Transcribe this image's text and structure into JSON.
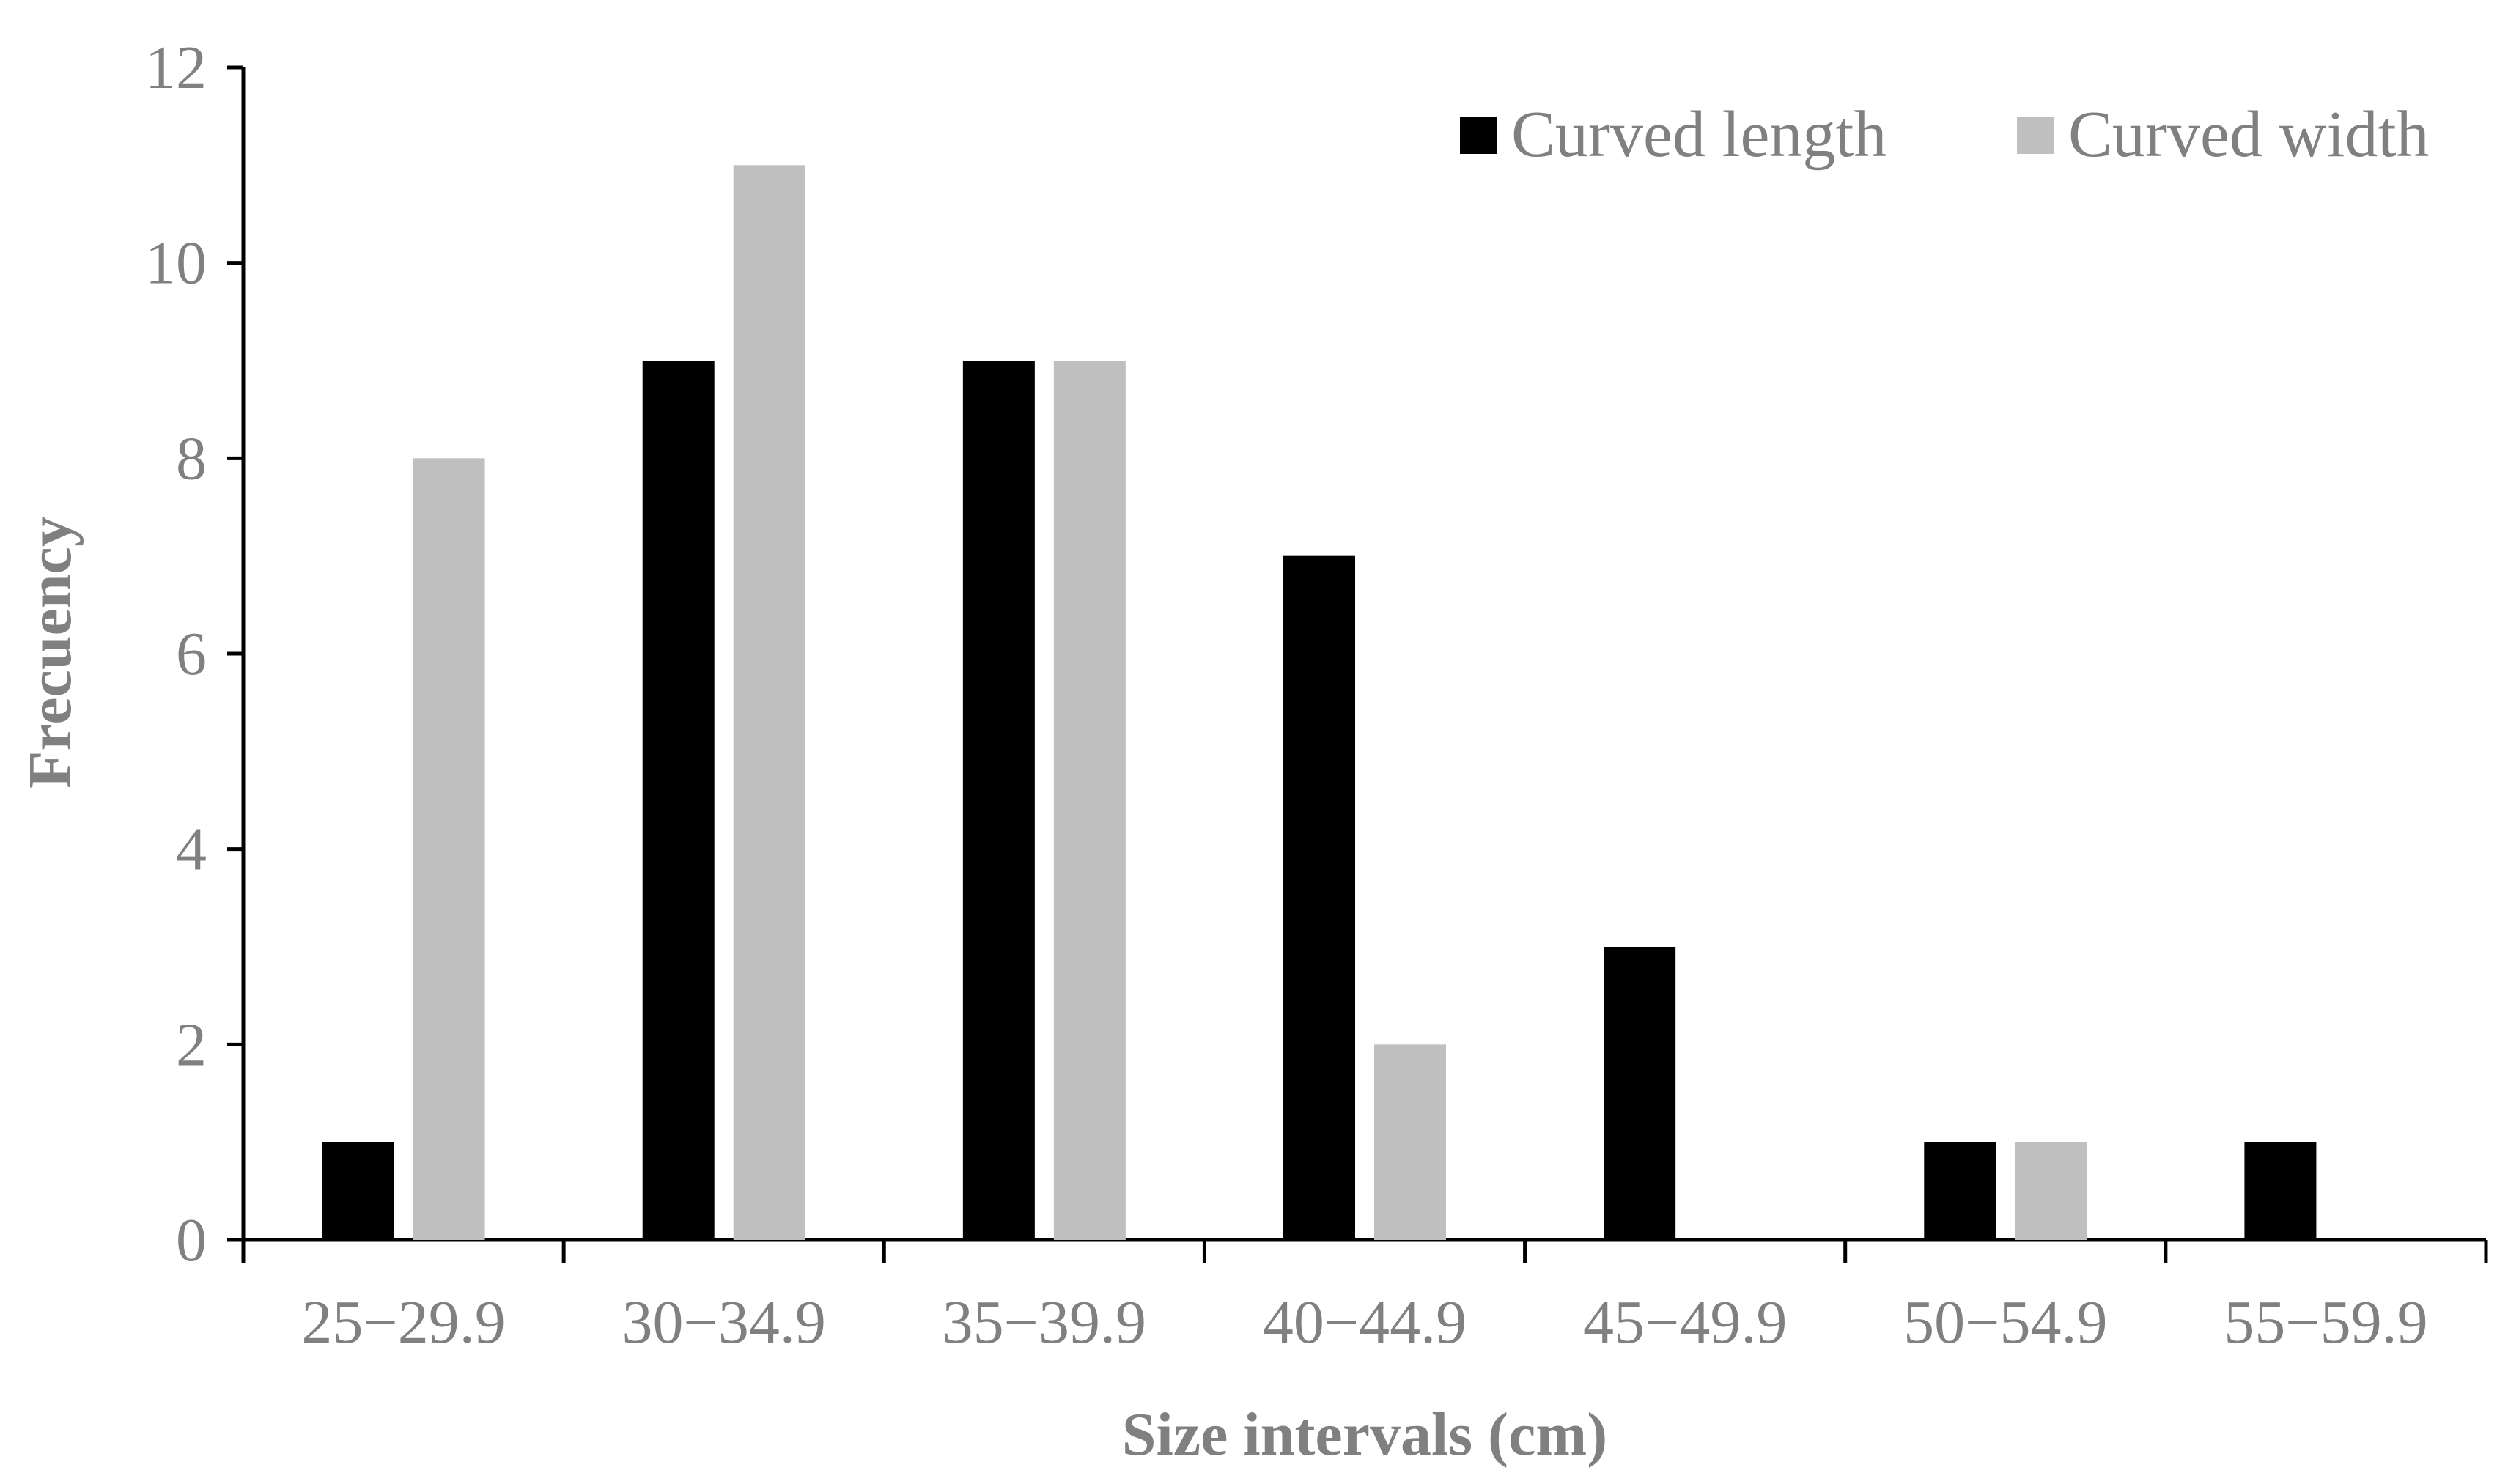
{
  "chart_data": {
    "type": "bar",
    "title": "",
    "xlabel": "Size intervals (cm)",
    "ylabel": "Frecuency",
    "categories": [
      "25−29.9",
      "30−34.9",
      "35−39.9",
      "40−44.9",
      "45−49.9",
      "50−54.9",
      "55−59.9"
    ],
    "series": [
      {
        "name": "Curved length",
        "color": "#000000",
        "values": [
          1,
          9,
          9,
          7,
          3,
          1,
          1
        ]
      },
      {
        "name": "Curved width",
        "color": "#bfbfbf",
        "values": [
          8,
          11,
          9,
          2,
          0,
          1,
          0
        ]
      }
    ],
    "ylim": [
      0,
      12
    ],
    "yticks": [
      0,
      2,
      4,
      6,
      8,
      10,
      12
    ],
    "grid": false,
    "legend": "top-right"
  }
}
